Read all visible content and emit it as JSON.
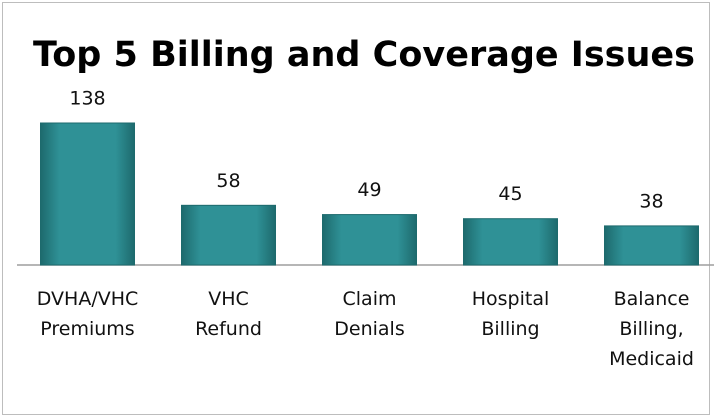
{
  "chart_data": {
    "type": "bar",
    "title": "Top 5 Billing and Coverage Issues",
    "categories": [
      "DVHA/VHC Premiums",
      "VHC Refund",
      "Claim Denials",
      "Hospital Billing",
      "Balance Billing, Medicaid"
    ],
    "values": [
      138,
      58,
      49,
      45,
      38
    ],
    "color": "#2a8a8e"
  }
}
